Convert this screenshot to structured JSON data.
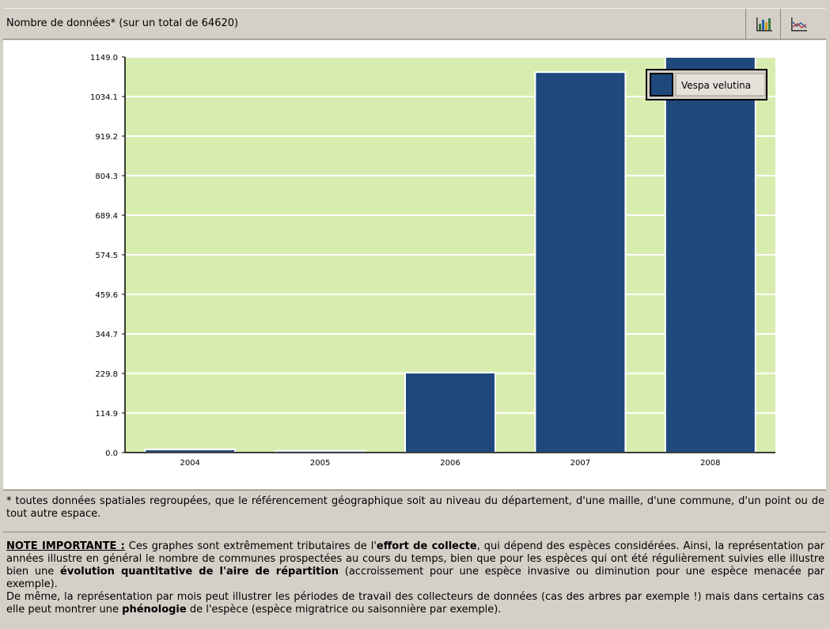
{
  "header": {
    "title": "Nombre de données* (sur un total de 64620)",
    "icons": [
      "bar-chart-icon",
      "line-chart-icon"
    ]
  },
  "chart_data": {
    "type": "bar",
    "categories": [
      "2004",
      "2005",
      "2006",
      "2007",
      "2008"
    ],
    "series": [
      {
        "name": "Vespa velutina",
        "values": [
          9,
          5,
          232,
          1105,
          1149
        ]
      }
    ],
    "yticks": [
      "0.0",
      "114.9",
      "229.8",
      "344.7",
      "459.6",
      "574.5",
      "689.4",
      "804.3",
      "919.2",
      "1034.1",
      "1149.0"
    ],
    "ylim": [
      0,
      1149.0
    ],
    "title": "",
    "xlabel": "",
    "ylabel": "",
    "legend_position": "top-right",
    "grid": true,
    "colors": {
      "bar": "#1f497d",
      "plot_bg": "#d9ecb0",
      "grid": "#ffffff"
    }
  },
  "footnote": {
    "text": "* toutes données spatiales regroupées, que le référencement géographique soit au niveau du département, d'une maille, d'une commune, d'un point ou de tout autre espace."
  },
  "note": {
    "title": "NOTE IMPORTANTE :",
    "p1a": " Ces graphes sont extrêmement tributaires de l'",
    "p1b": "effort de collecte",
    "p1c": ", qui dépend des espèces considérées. Ainsi, la représentation par années illustre en général le nombre de communes prospectées au cours du temps, bien que pour les espèces qui ont été régulièrement suivies elle illustre bien une ",
    "p1d": "évolution quantitative de l'aire de répartition",
    "p1e": " (accroissement pour une espèce invasive ou diminution pour une espèce menacée par exemple).",
    "p2a": "De même, la représentation par mois peut illustrer les périodes de travail des collecteurs de données (cas des arbres par exemple !) mais dans certains cas elle peut montrer une ",
    "p2b": "phénologie",
    "p2c": " de l'espèce (espèce migratrice ou saisonnière par exemple)."
  }
}
